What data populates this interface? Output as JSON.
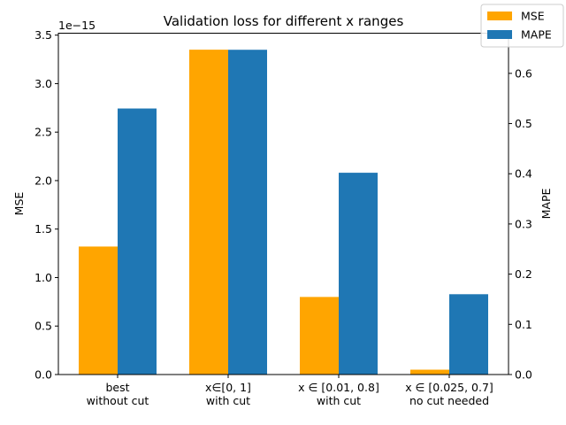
{
  "chart_data": {
    "type": "bar",
    "title": "Validation loss for different x ranges",
    "categories": [
      [
        "best",
        "without cut"
      ],
      [
        "x∈[0, 1]",
        "with cut"
      ],
      [
        "x ∈ [0.01, 0.8]",
        "with cut"
      ],
      [
        "x ∈ [0.025, 0.7]",
        "no cut needed"
      ]
    ],
    "series": [
      {
        "name": "MSE",
        "axis": "left",
        "color": "#ffa500",
        "values": [
          1.32e-15,
          3.35e-15,
          8e-16,
          5e-17
        ]
      },
      {
        "name": "MAPE",
        "axis": "right",
        "color": "#1f77b4",
        "values": [
          0.53,
          0.647,
          0.402,
          0.16
        ]
      }
    ],
    "y_left": {
      "label": "MSE",
      "offset_text": "1e−15",
      "scale": 1e-15,
      "ylim": [
        0,
        3.52
      ],
      "ticks": [
        0.0,
        0.5,
        1.0,
        1.5,
        2.0,
        2.5,
        3.0,
        3.5
      ],
      "tick_labels": [
        "0.0",
        "0.5",
        "1.0",
        "1.5",
        "2.0",
        "2.5",
        "3.0",
        "3.5"
      ]
    },
    "y_right": {
      "label": "MAPE",
      "ylim": [
        0,
        0.68
      ],
      "ticks": [
        0.0,
        0.1,
        0.2,
        0.3,
        0.4,
        0.5,
        0.6
      ],
      "tick_labels": [
        "0.0",
        "0.1",
        "0.2",
        "0.3",
        "0.4",
        "0.5",
        "0.6"
      ]
    },
    "legend": {
      "position": "top-right",
      "entries": [
        "MSE",
        "MAPE"
      ]
    },
    "grid": false
  }
}
